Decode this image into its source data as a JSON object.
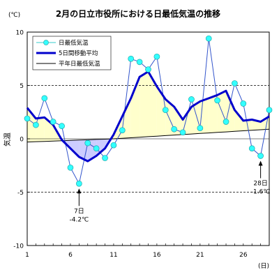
{
  "chart_data": {
    "type": "line",
    "title": "2月の日立市役所における日最低気温の推移",
    "unit_label": "(℃)",
    "ylabel": "気温",
    "x_unit_label": "(日)",
    "ylim": [
      -10,
      10
    ],
    "xlim": [
      1,
      29
    ],
    "y_ticks": [
      10,
      5,
      0,
      -5,
      -10
    ],
    "x_ticks": [
      1,
      6,
      11,
      16,
      21,
      26
    ],
    "grid": "dashed horizontal at ±5",
    "legend_position": "top-left",
    "days": [
      1,
      2,
      3,
      4,
      5,
      6,
      7,
      8,
      9,
      10,
      11,
      12,
      13,
      14,
      15,
      16,
      17,
      18,
      19,
      20,
      21,
      22,
      23,
      24,
      25,
      26,
      27,
      28,
      29
    ],
    "series": [
      {
        "name": "日最低気温",
        "color": "#33cccc",
        "marker": "circle",
        "values": [
          1.9,
          1.3,
          3.8,
          1.6,
          1.2,
          -2.7,
          -4.2,
          -0.4,
          -0.9,
          -1.8,
          -0.6,
          0.8,
          7.5,
          7.2,
          6.5,
          7.7,
          2.7,
          0.9,
          0.6,
          3.7,
          1.0,
          9.4,
          3.6,
          1.6,
          5.2,
          3.3,
          -0.9,
          -1.6,
          2.7
        ]
      },
      {
        "name": "5日間移動平均",
        "color": "#0000cc",
        "values": [
          2.9,
          1.9,
          2.0,
          1.3,
          -0.1,
          -0.9,
          -1.7,
          -2.1,
          -1.6,
          -0.9,
          0.4,
          2.1,
          3.8,
          5.8,
          6.3,
          4.9,
          3.7,
          3.0,
          1.8,
          3.0,
          3.5,
          3.8,
          4.1,
          4.5,
          2.7,
          1.7,
          1.8,
          1.6,
          2.1
        ]
      },
      {
        "name": "平年日最低気温",
        "color": "#000000",
        "values": [
          -0.3,
          -0.27,
          -0.24,
          -0.21,
          -0.18,
          -0.15,
          -0.12,
          -0.09,
          -0.06,
          -0.03,
          0.0,
          0.05,
          0.1,
          0.15,
          0.2,
          0.25,
          0.3,
          0.35,
          0.4,
          0.45,
          0.5,
          0.55,
          0.6,
          0.65,
          0.7,
          0.75,
          0.8,
          0.85,
          0.9
        ]
      }
    ],
    "fill_above_color": "#ffffcc",
    "fill_below_color": "#ccccff",
    "annotations": [
      {
        "day": 7,
        "line1": "7日",
        "line2": "-4.2℃"
      },
      {
        "day": 28,
        "line1": "28日",
        "line2": "-1.6℃"
      }
    ]
  }
}
